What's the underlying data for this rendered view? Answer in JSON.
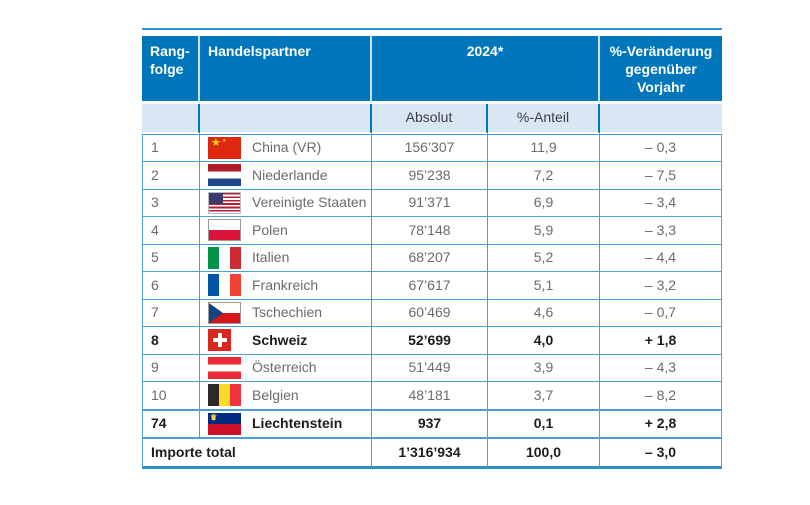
{
  "table": {
    "header": {
      "col_rank": "Rang-\nfolge",
      "col_partner": "Handelspartner",
      "col_year": "2024*",
      "col_change": "%-Veränderung gegenüber Vorjahr",
      "sub_absolut": "Absolut",
      "sub_anteil": "%-Anteil"
    },
    "rows": [
      {
        "rank": "1",
        "country": "China (VR)",
        "flag": "cn",
        "absolut": "156’307",
        "anteil": "11,9",
        "change": "– 0,3",
        "bold": false
      },
      {
        "rank": "2",
        "country": "Niederlande",
        "flag": "nl",
        "absolut": "95’238",
        "anteil": "7,2",
        "change": "– 7,5",
        "bold": false
      },
      {
        "rank": "3",
        "country": "Vereinigte Staaten",
        "flag": "us",
        "absolut": "91’371",
        "anteil": "6,9",
        "change": "– 3,4",
        "bold": false
      },
      {
        "rank": "4",
        "country": "Polen",
        "flag": "pl",
        "absolut": "78’148",
        "anteil": "5,9",
        "change": "– 3,3",
        "bold": false
      },
      {
        "rank": "5",
        "country": "Italien",
        "flag": "it",
        "absolut": "68’207",
        "anteil": "5,2",
        "change": "– 4,4",
        "bold": false
      },
      {
        "rank": "6",
        "country": "Frankreich",
        "flag": "fr",
        "absolut": "67’617",
        "anteil": "5,1",
        "change": "– 3,2",
        "bold": false
      },
      {
        "rank": "7",
        "country": "Tschechien",
        "flag": "cz",
        "absolut": "60’469",
        "anteil": "4,6",
        "change": "– 0,7",
        "bold": false
      },
      {
        "rank": "8",
        "country": "Schweiz",
        "flag": "ch",
        "absolut": "52’699",
        "anteil": "4,0",
        "change": "+ 1,8",
        "bold": true
      },
      {
        "rank": "9",
        "country": "Österreich",
        "flag": "at",
        "absolut": "51’449",
        "anteil": "3,9",
        "change": "– 4,3",
        "bold": false
      },
      {
        "rank": "10",
        "country": "Belgien",
        "flag": "be",
        "absolut": "48’181",
        "anteil": "3,7",
        "change": "– 8,2",
        "bold": false
      },
      {
        "rank": "74",
        "country": "Liechtenstein",
        "flag": "li",
        "absolut": "937",
        "anteil": "0,1",
        "change": "+ 2,8",
        "bold": true
      }
    ],
    "total": {
      "label": "Importe total",
      "absolut": "1’316’934",
      "anteil": "100,0",
      "change": "– 3,0"
    }
  },
  "colors": {
    "header_blue": "#0076BD",
    "subheader_bg": "#D9E6F3",
    "grid_blue": "#4A9FD8",
    "text_gray": "#6A6B6E",
    "text_dark": "#1D1D1B"
  }
}
